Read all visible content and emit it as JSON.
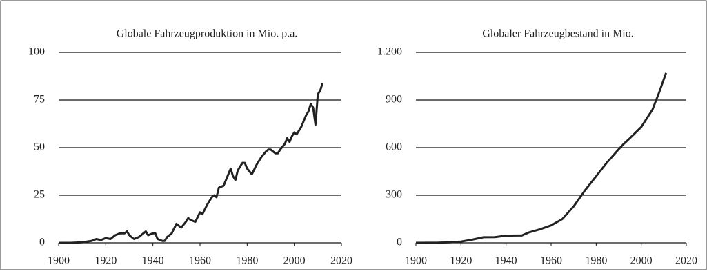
{
  "chart_data": [
    {
      "type": "line",
      "title": "Globale Fahrzeugproduktion in Mio. p.a.",
      "color": "#222222",
      "x": [
        1900,
        1905,
        1910,
        1914,
        1916,
        1918,
        1920,
        1922,
        1924,
        1926,
        1928,
        1929,
        1930,
        1932,
        1934,
        1936,
        1937,
        1938,
        1940,
        1941,
        1942,
        1944,
        1945,
        1946,
        1948,
        1950,
        1952,
        1954,
        1955,
        1956,
        1958,
        1960,
        1961,
        1963,
        1965,
        1966,
        1967,
        1968,
        1970,
        1971,
        1973,
        1974,
        1975,
        1976,
        1978,
        1979,
        1980,
        1982,
        1984,
        1986,
        1988,
        1989,
        1990,
        1992,
        1993,
        1994,
        1996,
        1997,
        1998,
        1999,
        2000,
        2001,
        2002,
        2003,
        2004,
        2005,
        2006,
        2007,
        2008,
        2009,
        2010,
        2011,
        2012
      ],
      "values": [
        0,
        0,
        0.3,
        1,
        2,
        1.5,
        2.5,
        2,
        4,
        5,
        5,
        6,
        4,
        2,
        3,
        5,
        6,
        4,
        5,
        5,
        2,
        1,
        1,
        3,
        5,
        10,
        8,
        11,
        13,
        12,
        11,
        16,
        15,
        20,
        24,
        25,
        24,
        29,
        30,
        33,
        39,
        35,
        33,
        38,
        42,
        42,
        39,
        36,
        41,
        45,
        48,
        49,
        49,
        47,
        47,
        49,
        52,
        55,
        53,
        56,
        58,
        57,
        59,
        61,
        64,
        67,
        69,
        73,
        71,
        62,
        78,
        80,
        84
      ],
      "xlim": [
        1900,
        2020
      ],
      "xticks": [
        1900,
        1920,
        1940,
        1960,
        1980,
        2000,
        2020
      ],
      "ylim": [
        0,
        100
      ],
      "yticks": [
        0,
        25,
        50,
        75,
        100
      ],
      "grid": true
    },
    {
      "type": "line",
      "title": "Globaler Fahrzeugbestand in Mio.",
      "color": "#222222",
      "x": [
        1900,
        1910,
        1915,
        1920,
        1925,
        1930,
        1935,
        1940,
        1945,
        1947,
        1950,
        1955,
        1960,
        1965,
        1970,
        1975,
        1980,
        1985,
        1990,
        1992,
        1995,
        2000,
        2005,
        2008,
        2010,
        2011
      ],
      "values": [
        0,
        1,
        3,
        8,
        20,
        35,
        36,
        45,
        46,
        46,
        65,
        85,
        110,
        150,
        230,
        330,
        420,
        510,
        590,
        620,
        660,
        730,
        840,
        950,
        1030,
        1070
      ],
      "xlim": [
        1900,
        2020
      ],
      "xticks": [
        1900,
        1920,
        1940,
        1960,
        1980,
        2000,
        2020
      ],
      "ylim": [
        0,
        1200
      ],
      "yticks": [
        0,
        300,
        600,
        900,
        {
          "value": 1200,
          "label": "1.200"
        }
      ],
      "grid": true
    }
  ]
}
